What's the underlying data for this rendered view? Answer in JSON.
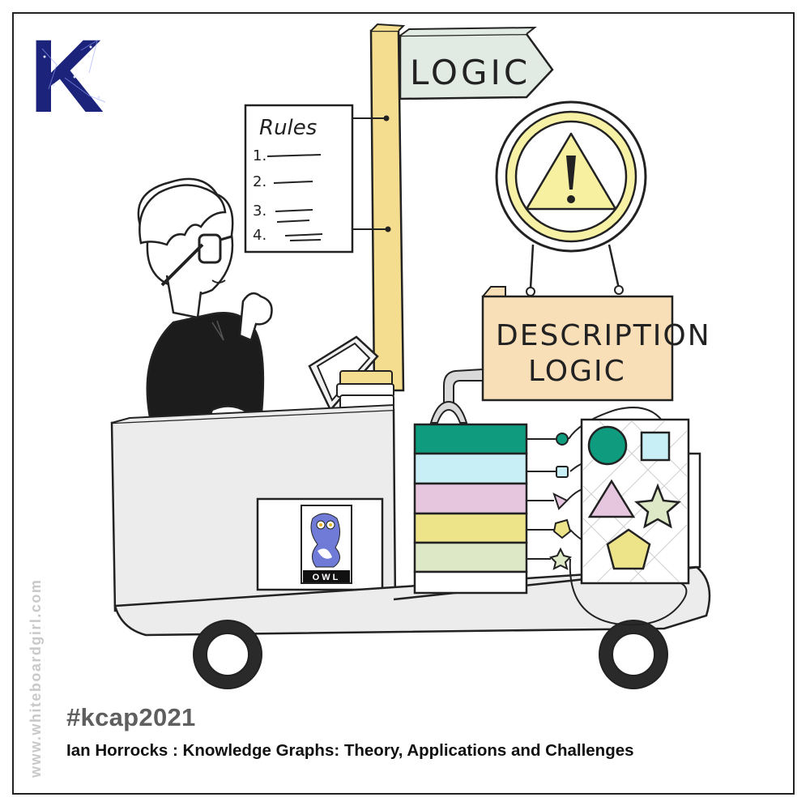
{
  "logo": {
    "letter": "K",
    "color": "#1b237a"
  },
  "signpost": {
    "label": "LOGIC"
  },
  "rules_sheet": {
    "title": "Rules",
    "items": [
      "1.",
      "2.",
      "3.",
      "4."
    ]
  },
  "warning_sign": {
    "glyph": "!",
    "ring_color": "#f7f1a5",
    "triangle_color": "#f6f0a0"
  },
  "description_sign": {
    "line1": "DESCRIPTION",
    "line2": "LOGIC",
    "color": "#f9dfb8"
  },
  "owl_card": {
    "label": "OWL"
  },
  "stack_colors": [
    "#0e9b7e",
    "#c8eef6",
    "#e6c5de",
    "#ede48a",
    "#dde8c7",
    "#ffffff"
  ],
  "shapes_board": {
    "circle": "#0e9b7e",
    "square": "#c8eef6",
    "triangle": "#e6c5de",
    "star": "#dde8c7",
    "pentagon": "#ede48a"
  },
  "footer": {
    "hashtag": "#kcap2021",
    "subtitle": "Ian Horrocks : Knowledge Graphs: Theory, Applications and Challenges",
    "watermark": "www.whiteboardgirl.com"
  }
}
